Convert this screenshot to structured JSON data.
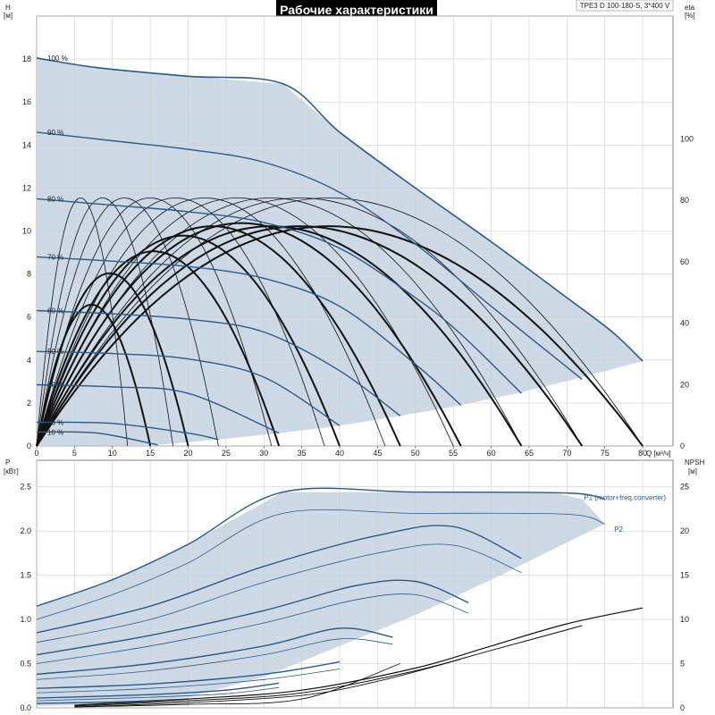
{
  "title": "Рабочие характеристики",
  "model": "TPE3 D 100-180-S, 3*400 V",
  "colors": {
    "area": "#cdd9e5",
    "primary": "#2b5a8a",
    "eff": "#111111",
    "grid": "#cfcfcf"
  },
  "chart_data": [
    {
      "type": "line",
      "name": "head",
      "x_label": "Q [м³/ч]",
      "y_label": "H [м]",
      "y2_label": "eta [%]",
      "xlim": [
        0,
        84
      ],
      "ylim": [
        0,
        20
      ],
      "y2lim": [
        0,
        140
      ],
      "x_ticks": [
        0,
        5,
        10,
        15,
        20,
        25,
        30,
        35,
        40,
        45,
        50,
        55,
        60,
        65,
        70,
        75,
        80
      ],
      "y_ticks": [
        0,
        2,
        4,
        6,
        8,
        10,
        12,
        14,
        16,
        18
      ],
      "y2_ticks": [
        0,
        20,
        40,
        60,
        80,
        100
      ],
      "region": [
        [
          0,
          18.05
        ],
        [
          8,
          17.6
        ],
        [
          20,
          17.2
        ],
        [
          32.5,
          16.85
        ],
        [
          40,
          14.6
        ],
        [
          50,
          12.0
        ],
        [
          60,
          9.5
        ],
        [
          70,
          6.9
        ],
        [
          76,
          5.3
        ],
        [
          80,
          3.95
        ],
        [
          72,
          3.2
        ],
        [
          64,
          2.5
        ],
        [
          56,
          1.9
        ],
        [
          48,
          1.4
        ],
        [
          40,
          0.95
        ],
        [
          32,
          0.6
        ],
        [
          24,
          0.3
        ],
        [
          16,
          0.05
        ],
        [
          0,
          0
        ]
      ],
      "speed_curves": [
        {
          "label": "100 %",
          "x": [
            0,
            8,
            20,
            32.5,
            40,
            50,
            60,
            70,
            76,
            80
          ],
          "y": [
            18.05,
            17.6,
            17.2,
            16.85,
            14.6,
            12.0,
            9.5,
            6.9,
            5.3,
            3.95
          ]
        },
        {
          "label": "90 %",
          "x": [
            0,
            10,
            20,
            30,
            40,
            50,
            60,
            72
          ],
          "y": [
            14.6,
            14.2,
            13.8,
            13.2,
            11.8,
            9.4,
            6.5,
            3.1
          ]
        },
        {
          "label": "80 %",
          "x": [
            0,
            10,
            20,
            30,
            40,
            50,
            56,
            64
          ],
          "y": [
            11.5,
            11.2,
            10.9,
            10.4,
            9.2,
            6.9,
            5.2,
            2.45
          ]
        },
        {
          "label": "70 %",
          "x": [
            0,
            10,
            20,
            30,
            40,
            50,
            56
          ],
          "y": [
            8.8,
            8.6,
            8.35,
            7.8,
            6.5,
            3.8,
            1.9
          ]
        },
        {
          "label": "60 %",
          "x": [
            0,
            10,
            20,
            30,
            40,
            48
          ],
          "y": [
            6.3,
            6.15,
            5.9,
            5.3,
            3.5,
            1.4
          ]
        },
        {
          "label": "50 %",
          "x": [
            0,
            10,
            20,
            30,
            40
          ],
          "y": [
            4.4,
            4.3,
            4.05,
            3.2,
            0.95
          ]
        },
        {
          "label": "40 %",
          "x": [
            0,
            10,
            20,
            32
          ],
          "y": [
            2.85,
            2.75,
            2.45,
            0.6
          ]
        },
        {
          "label": "25 %",
          "x": [
            0,
            10,
            20,
            24
          ],
          "y": [
            1.1,
            1.05,
            0.6,
            0.3
          ]
        },
        {
          "label": "10 %",
          "x": [
            0,
            8,
            16
          ],
          "y": [
            0.65,
            0.6,
            0.05
          ]
        }
      ],
      "eff_curves": [
        {
          "qmax": 15,
          "peak": 45,
          "w": 2.0
        },
        {
          "qmax": 20,
          "peak": 55,
          "w": 2.0
        },
        {
          "qmax": 32,
          "peak": 62,
          "w": 2.0
        },
        {
          "qmax": 40,
          "peak": 67,
          "w": 2.0
        },
        {
          "qmax": 48,
          "peak": 70,
          "w": 2.0
        },
        {
          "qmax": 56,
          "peak": 71,
          "w": 2.0
        },
        {
          "qmax": 64,
          "peak": 70,
          "w": 2.0
        },
        {
          "qmax": 72,
          "peak": 70,
          "w": 2.0
        },
        {
          "qmax": 80,
          "peak": 70,
          "w": 2.0
        },
        {
          "qmax": 12,
          "peak": 79,
          "w": 0.8
        },
        {
          "qmax": 18,
          "peak": 79,
          "w": 0.8
        },
        {
          "qmax": 24,
          "peak": 79,
          "w": 0.8
        },
        {
          "qmax": 31,
          "peak": 79,
          "w": 0.8
        },
        {
          "qmax": 38,
          "peak": 79,
          "w": 0.8
        },
        {
          "qmax": 46,
          "peak": 79,
          "w": 0.8
        },
        {
          "qmax": 55,
          "peak": 79,
          "w": 0.8
        },
        {
          "qmax": 64,
          "peak": 79,
          "w": 0.8
        },
        {
          "qmax": 72,
          "peak": 79,
          "w": 0.8
        },
        {
          "qmax": 80,
          "peak": 79,
          "w": 0.8
        }
      ]
    },
    {
      "type": "line",
      "name": "power",
      "y_label": "P [кВт]",
      "y2_label": "NPSH [м]",
      "xlim": [
        0,
        84
      ],
      "ylim": [
        0,
        2.8
      ],
      "y2lim": [
        0,
        28
      ],
      "y_ticks": [
        0,
        0.5,
        1.0,
        1.5,
        2.0,
        2.5
      ],
      "y_tick_labels": [
        "0.0",
        "0.5",
        "1.0",
        "1.5",
        "2.0",
        "2.5"
      ],
      "y2_ticks": [
        0,
        5,
        10,
        15,
        20,
        25
      ],
      "region": [
        [
          0,
          1.15
        ],
        [
          10,
          1.45
        ],
        [
          20,
          1.85
        ],
        [
          32.5,
          2.44
        ],
        [
          40,
          2.44
        ],
        [
          50,
          2.44
        ],
        [
          60,
          2.44
        ],
        [
          68,
          2.44
        ],
        [
          72,
          2.36
        ],
        [
          75,
          2.08
        ],
        [
          60,
          1.45
        ],
        [
          50,
          1.05
        ],
        [
          40,
          0.7
        ],
        [
          30,
          0.35
        ],
        [
          20,
          0.12
        ],
        [
          10,
          0.04
        ],
        [
          0,
          0.02
        ]
      ],
      "p1_curves": [
        {
          "x": [
            0,
            10,
            20,
            32.5,
            50,
            70,
            75
          ],
          "y": [
            1.15,
            1.45,
            1.85,
            2.44,
            2.44,
            2.43,
            2.36
          ],
          "w": 1.4
        },
        {
          "x": [
            0,
            15,
            30,
            45,
            55,
            64
          ],
          "y": [
            0.85,
            1.15,
            1.6,
            1.95,
            2.05,
            1.69
          ],
          "w": 1.4
        },
        {
          "x": [
            0,
            15,
            30,
            42,
            50,
            57
          ],
          "y": [
            0.6,
            0.82,
            1.1,
            1.38,
            1.43,
            1.19
          ],
          "w": 1.4
        },
        {
          "x": [
            0,
            15,
            30,
            40,
            47
          ],
          "y": [
            0.38,
            0.5,
            0.7,
            0.9,
            0.8
          ],
          "w": 1.4
        },
        {
          "x": [
            0,
            15,
            30,
            40
          ],
          "y": [
            0.22,
            0.27,
            0.38,
            0.52
          ],
          "w": 1.4
        },
        {
          "x": [
            0,
            15,
            25,
            32
          ],
          "y": [
            0.11,
            0.15,
            0.2,
            0.28
          ],
          "w": 1.4
        },
        {
          "x": [
            0,
            12,
            20
          ],
          "y": [
            0.05,
            0.07,
            0.1
          ],
          "w": 1.4
        }
      ],
      "p2_curves": [
        {
          "x": [
            0,
            10,
            20,
            32.5,
            50,
            70,
            75
          ],
          "y": [
            1.0,
            1.28,
            1.64,
            2.2,
            2.2,
            2.19,
            2.08
          ],
          "w": 0.8
        },
        {
          "x": [
            0,
            15,
            30,
            45,
            55,
            64
          ],
          "y": [
            0.74,
            1.0,
            1.42,
            1.75,
            1.84,
            1.53
          ],
          "w": 0.8
        },
        {
          "x": [
            0,
            15,
            30,
            42,
            50,
            57
          ],
          "y": [
            0.5,
            0.7,
            0.96,
            1.22,
            1.28,
            1.07
          ],
          "w": 0.8
        },
        {
          "x": [
            0,
            15,
            30,
            40,
            47
          ],
          "y": [
            0.32,
            0.42,
            0.6,
            0.78,
            0.72
          ],
          "w": 0.8
        },
        {
          "x": [
            0,
            15,
            30,
            40
          ],
          "y": [
            0.17,
            0.22,
            0.32,
            0.44
          ],
          "w": 0.8
        },
        {
          "x": [
            0,
            15,
            25,
            32
          ],
          "y": [
            0.08,
            0.12,
            0.16,
            0.23
          ],
          "w": 0.8
        }
      ],
      "npsh_curves": [
        {
          "x": [
            5,
            20,
            35,
            50,
            60,
            70,
            80
          ],
          "y": [
            0.3,
            1.0,
            2.0,
            4.5,
            7.0,
            9.5,
            11.3
          ],
          "w": 1.2
        },
        {
          "x": [
            5,
            20,
            35,
            50,
            60,
            72
          ],
          "y": [
            0.2,
            0.8,
            1.7,
            4.2,
            6.5,
            9.3
          ],
          "w": 1.0
        },
        {
          "x": [
            5,
            20,
            35,
            45,
            56
          ],
          "y": [
            0.1,
            0.6,
            1.4,
            3.0,
            5.5
          ],
          "w": 0.9
        },
        {
          "x": [
            5,
            20,
            35,
            48
          ],
          "y": [
            0.1,
            0.4,
            1.0,
            5.0
          ],
          "w": 0.9
        }
      ],
      "p1_label": "P1 (motor+freq.converter)",
      "p2_label": "P2"
    }
  ]
}
